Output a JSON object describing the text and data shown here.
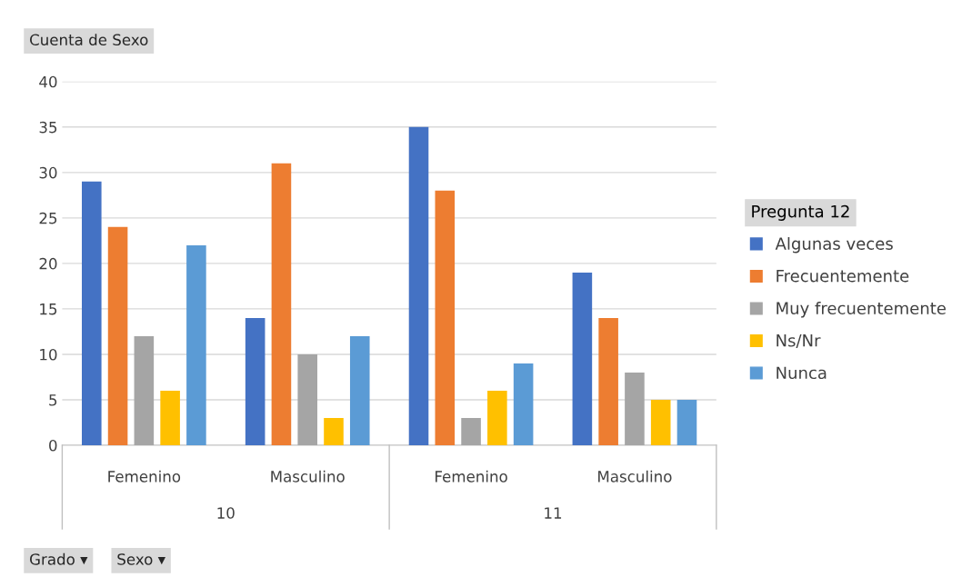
{
  "chart_data": {
    "type": "bar",
    "title": "Cuenta de Sexo",
    "legend_title": "Pregunta 12",
    "categories": [
      "Femenino",
      "Masculino",
      "Femenino",
      "Masculino"
    ],
    "series": [
      {
        "name": "Algunas veces",
        "color": "#4472c4",
        "values": [
          29,
          14,
          35,
          19
        ]
      },
      {
        "name": "Frecuentemente",
        "color": "#ed7d31",
        "values": [
          24,
          31,
          28,
          14
        ]
      },
      {
        "name": "Muy frecuentemente",
        "color": "#a5a5a5",
        "values": [
          12,
          10,
          3,
          8
        ]
      },
      {
        "name": "Ns/Nr",
        "color": "#ffc000",
        "values": [
          6,
          3,
          6,
          5
        ]
      },
      {
        "name": "Nunca",
        "color": "#5b9bd5",
        "values": [
          22,
          12,
          9,
          5
        ]
      }
    ],
    "ylim": [
      0,
      40
    ],
    "yticks": [
      0,
      5,
      10,
      15,
      20,
      25,
      30,
      35,
      40
    ],
    "grid": "y",
    "legend": "right",
    "annotations": [
      "10",
      "11",
      "Grado ▾",
      "Sexo ▾"
    ]
  }
}
